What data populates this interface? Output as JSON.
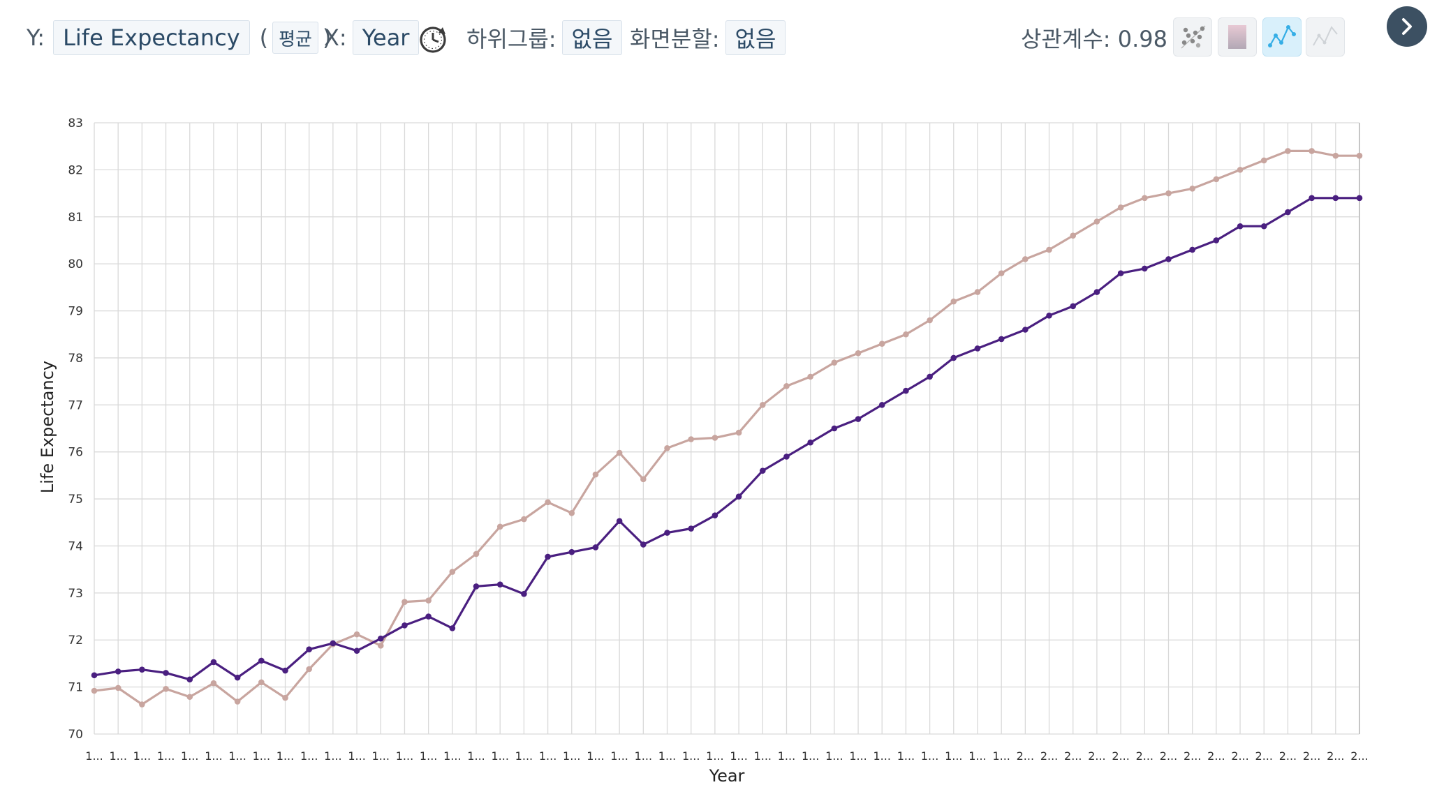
{
  "toolbar": {
    "y_prefix": "Y:",
    "y_value": "Life Expectancy",
    "paren_open": "(",
    "aggregate": "평균",
    "paren_close": ")",
    "x_prefix": "X:",
    "x_value": "Year",
    "subgroup_label": "하위그룹:",
    "subgroup_value": "없음",
    "split_label": "화면분할:",
    "split_value": "없음",
    "correlation_text": "상관계수: 0.98",
    "icons": [
      "clock-icon",
      "scatter-icon",
      "heatmap-icon",
      "line-point-icon",
      "line-icon",
      "chevron-right-icon"
    ],
    "active_view": "line-point-icon"
  },
  "colors": {
    "series_1": "#4a1f80",
    "series_2": "#c8a59f",
    "active_view_bg": "#d9f0fb",
    "next_button": "#3c5062"
  },
  "chart_data": {
    "type": "line",
    "xlabel": "Year",
    "ylabel": "Life Expectancy",
    "ylim": [
      70,
      83
    ],
    "y_ticks": [
      70,
      71,
      72,
      73,
      74,
      75,
      76,
      77,
      78,
      79,
      80,
      81,
      82,
      83
    ],
    "x_tick_labels": [
      "1...",
      "1...",
      "1...",
      "1...",
      "1...",
      "1...",
      "1...",
      "1...",
      "1...",
      "1...",
      "1...",
      "1...",
      "1...",
      "1...",
      "1...",
      "1...",
      "1...",
      "1...",
      "1...",
      "1...",
      "1...",
      "1...",
      "1...",
      "1...",
      "1...",
      "1...",
      "1...",
      "1...",
      "1...",
      "1...",
      "1...",
      "1...",
      "1...",
      "1...",
      "1...",
      "1...",
      "1...",
      "1...",
      "1...",
      "2...",
      "2...",
      "2...",
      "2...",
      "2...",
      "2...",
      "2...",
      "2...",
      "2...",
      "2...",
      "2...",
      "2...",
      "2...",
      "2...",
      "2..."
    ],
    "grid": true,
    "legend": "none",
    "series": [
      {
        "values": [
          71.25,
          71.33,
          71.37,
          71.3,
          71.16,
          71.53,
          71.2,
          71.56,
          71.35,
          71.8,
          71.93,
          71.77,
          72.03,
          72.31,
          72.5,
          72.25,
          73.14,
          73.18,
          72.98,
          73.77,
          73.87,
          73.97,
          74.53,
          74.03,
          74.28,
          74.37,
          74.65,
          75.05,
          75.6,
          75.9,
          76.2,
          76.5,
          76.7,
          77.0,
          77.3,
          77.6,
          78.0,
          78.2,
          78.4,
          78.6,
          78.9,
          79.1,
          79.4,
          79.8,
          79.9,
          80.1,
          80.3,
          80.5,
          80.8,
          80.8,
          81.1,
          81.4,
          81.4,
          81.4
        ]
      },
      {
        "values": [
          70.92,
          70.98,
          70.63,
          70.96,
          70.79,
          71.08,
          70.69,
          71.1,
          70.77,
          71.38,
          71.91,
          72.12,
          71.88,
          72.81,
          72.84,
          73.45,
          73.83,
          74.41,
          74.57,
          74.93,
          74.7,
          75.52,
          75.98,
          75.42,
          76.08,
          76.27,
          76.3,
          76.41,
          77.0,
          77.4,
          77.6,
          77.9,
          78.1,
          78.3,
          78.5,
          78.8,
          79.2,
          79.4,
          79.8,
          80.1,
          80.3,
          80.6,
          80.9,
          81.2,
          81.4,
          81.5,
          81.6,
          81.8,
          82.0,
          82.2,
          82.4,
          82.4,
          82.3,
          82.3
        ]
      }
    ]
  }
}
